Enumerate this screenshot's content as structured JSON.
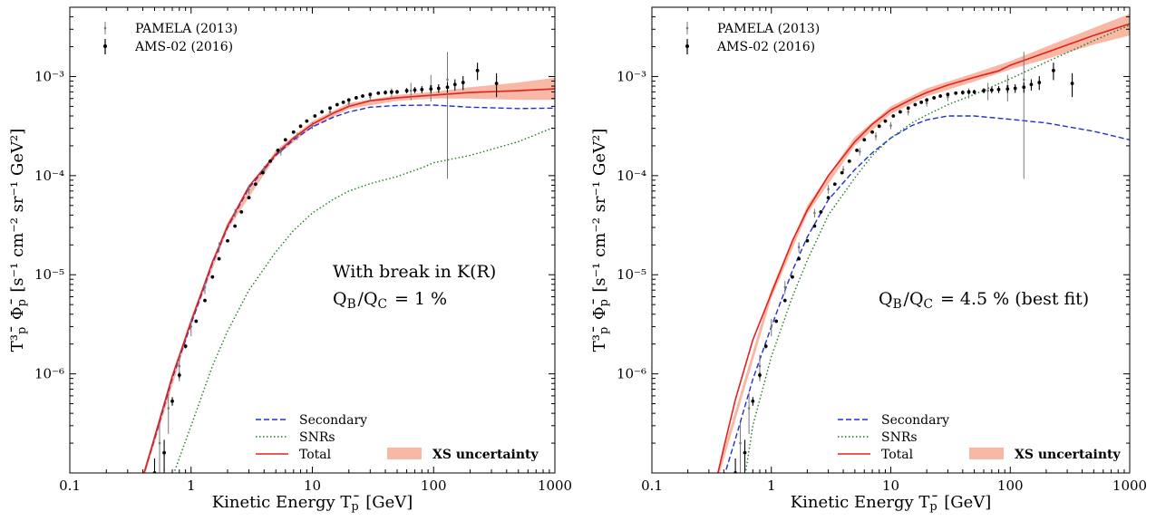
{
  "chart_data": [
    {
      "type": "line",
      "annotation_line1": "With break in K(R)",
      "annotation_line2": "Q_B/Q_C = 1 %",
      "xlabel": "Kinetic Energy T_p̄ [GeV]",
      "ylabel": "T³_p̄ Φ_p̄ [s⁻¹ cm⁻² sr⁻¹ GeV²]",
      "xscale": "log",
      "yscale": "log",
      "xlim": [
        0.1,
        1000
      ],
      "ylim": [
        1e-07,
        0.005
      ],
      "x_ticks": [
        "0.1",
        "1",
        "10",
        "100",
        "1000"
      ],
      "y_ticks": [
        "10⁻⁶",
        "10⁻⁵",
        "10⁻⁴",
        "10⁻³"
      ],
      "legend_top": [
        "PAMELA (2013)",
        "AMS-02 (2016)"
      ],
      "legend_bottom": [
        "Secondary",
        "SNRs",
        "Total",
        "XS uncertainty"
      ],
      "colors": {
        "secondary": "#1f2fd6",
        "snrs": "#1a7d1a",
        "total": "#e32020",
        "band": "#f7b8a5",
        "pamela": "#777777",
        "ams": "#000000"
      },
      "series": [
        {
          "name": "Secondary",
          "style": "dashed",
          "x": [
            0.4,
            0.5,
            0.7,
            1,
            1.5,
            2,
            3,
            5,
            7,
            10,
            15,
            20,
            30,
            50,
            100,
            200,
            500,
            1000
          ],
          "y": [
            9e-08,
            2.2e-07,
            9e-07,
            3.2e-06,
            1.3e-05,
            3e-05,
            7.5e-05,
            0.00016,
            0.00023,
            0.00031,
            0.00039,
            0.00044,
            0.00049,
            0.00051,
            0.000515,
            0.00049,
            0.000475,
            0.00048
          ]
        },
        {
          "name": "SNRs",
          "style": "dotted",
          "x": [
            0.7,
            1,
            1.5,
            2,
            3,
            5,
            7,
            10,
            15,
            20,
            30,
            50,
            80,
            100,
            200,
            500,
            1000
          ],
          "y": [
            9e-08,
            3e-07,
            1.2e-06,
            2.7e-06,
            7e-06,
            1.7e-05,
            2.8e-05,
            4.2e-05,
            5.8e-05,
            7e-05,
            8.3e-05,
            9.8e-05,
            0.00012,
            0.000135,
            0.00016,
            0.00022,
            0.00031
          ]
        },
        {
          "name": "Total",
          "style": "solid",
          "x": [
            0.4,
            0.5,
            0.7,
            1,
            1.5,
            2,
            3,
            5,
            7,
            10,
            15,
            20,
            30,
            50,
            100,
            200,
            500,
            1000
          ],
          "y": [
            9e-08,
            2.3e-07,
            9.5e-07,
            3.4e-06,
            1.35e-05,
            3.1e-05,
            7.8e-05,
            0.000165,
            0.00024,
            0.00033,
            0.00043,
            0.0005,
            0.00057,
            0.00061,
            0.00065,
            0.00069,
            0.00072,
            0.00075
          ]
        }
      ],
      "band": {
        "name": "XS uncertainty",
        "x": [
          0.4,
          1,
          2,
          5,
          10,
          20,
          50,
          100,
          200,
          500,
          1000
        ],
        "low": [
          8.2e-08,
          3.1e-06,
          2.85e-05,
          0.000155,
          0.00031,
          0.00047,
          0.00057,
          0.0006,
          0.0006,
          0.00058,
          0.00058
        ],
        "high": [
          9.9e-08,
          3.7e-06,
          3.4e-05,
          0.00018,
          0.000355,
          0.00054,
          0.00065,
          0.0007,
          0.00078,
          0.00087,
          0.00097
        ]
      },
      "ams": {
        "x": [
          0.5,
          0.6,
          0.7,
          0.8,
          0.9,
          1.1,
          1.3,
          1.5,
          1.7,
          2.0,
          2.3,
          2.6,
          3.0,
          3.4,
          3.9,
          4.5,
          5.2,
          6.0,
          7.0,
          8.0,
          9.0,
          10.5,
          12,
          14,
          16,
          18,
          20,
          23,
          26,
          30,
          35,
          40,
          45,
          50,
          60,
          70,
          80,
          95,
          110,
          130,
          150,
          175,
          230,
          330
        ],
        "y": [
          1e-07,
          1.6e-07,
          5.3e-07,
          9.7e-07,
          1.9e-06,
          3.4e-06,
          5.5e-06,
          9.5e-06,
          1.45e-05,
          2.2e-05,
          3.1e-05,
          4.3e-05,
          6e-05,
          8.2e-05,
          0.000107,
          0.00014,
          0.00018,
          0.00023,
          0.000275,
          0.000315,
          0.000355,
          0.0004,
          0.00044,
          0.00048,
          0.00052,
          0.00055,
          0.00058,
          0.00061,
          0.000635,
          0.00066,
          0.00068,
          0.00069,
          0.0007,
          0.0007,
          0.00072,
          0.00073,
          0.00074,
          0.00075,
          0.00076,
          0.00078,
          0.00083,
          0.00087,
          0.00115,
          0.00085
        ],
        "err": [
          0.4,
          0.35,
          0.1,
          0.07,
          0.05,
          0.04,
          0.04,
          0.04,
          0.03,
          0.03,
          0.03,
          0.03,
          0.03,
          0.03,
          0.03,
          0.03,
          0.03,
          0.03,
          0.03,
          0.03,
          0.03,
          0.03,
          0.03,
          0.03,
          0.03,
          0.04,
          0.04,
          0.04,
          0.04,
          0.04,
          0.04,
          0.05,
          0.05,
          0.05,
          0.06,
          0.07,
          0.08,
          0.09,
          0.1,
          0.12,
          0.13,
          0.16,
          0.2,
          0.27
        ]
      },
      "pamela": {
        "x": [
          0.55,
          0.65,
          0.8,
          1.0,
          1.3,
          1.7,
          2.3,
          3.0,
          4.0,
          5.5,
          7.5,
          10,
          14,
          20,
          30,
          45,
          65,
          95,
          130
        ],
        "y": [
          2e-07,
          4.5e-07,
          1.2e-06,
          3e-06,
          7.5e-06,
          1.9e-05,
          4.2e-05,
          7.3e-05,
          0.000115,
          0.000175,
          0.00025,
          0.00032,
          0.00044,
          0.00054,
          0.00062,
          0.00068,
          0.00072,
          0.0008,
          0.00093
        ],
        "err": [
          0.6,
          0.45,
          0.3,
          0.2,
          0.15,
          0.12,
          0.1,
          0.1,
          0.09,
          0.09,
          0.09,
          0.08,
          0.08,
          0.08,
          0.09,
          0.12,
          0.2,
          0.3,
          0.9
        ]
      }
    },
    {
      "type": "line",
      "annotation_line1": "",
      "annotation_line2": "Q_B/Q_C = 4.5 % (best fit)",
      "xlabel": "Kinetic Energy T_p̄ [GeV]",
      "ylabel": "T³_p̄ Φ_p̄ [s⁻¹ cm⁻² sr⁻¹ GeV²]",
      "xscale": "log",
      "yscale": "log",
      "xlim": [
        0.1,
        1000
      ],
      "ylim": [
        1e-07,
        0.005
      ],
      "x_ticks": [
        "0.1",
        "1",
        "10",
        "100",
        "1000"
      ],
      "y_ticks": [
        "10⁻⁶",
        "10⁻⁵",
        "10⁻⁴",
        "10⁻³"
      ],
      "legend_top": [
        "PAMELA (2013)",
        "AMS-02 (2016)"
      ],
      "legend_bottom": [
        "Secondary",
        "SNRs",
        "Total",
        "XS uncertainty"
      ],
      "colors": {
        "secondary": "#1f2fd6",
        "snrs": "#1a7d1a",
        "total": "#e32020",
        "band": "#f7b8a5",
        "pamela": "#777777",
        "ams": "#000000"
      },
      "series": [
        {
          "name": "Secondary",
          "style": "dashed",
          "x": [
            0.4,
            0.5,
            0.7,
            1,
            1.5,
            2,
            3,
            5,
            7,
            10,
            15,
            20,
            30,
            50,
            100,
            200,
            500,
            1000
          ],
          "y": [
            9e-08,
            2.2e-07,
            8.8e-07,
            3e-06,
            1.1e-05,
            2.4e-05,
            5.7e-05,
            0.000115,
            0.00017,
            0.00024,
            0.00032,
            0.000365,
            0.0004,
            0.0004,
            0.00037,
            0.00034,
            0.00028,
            0.00023
          ]
        },
        {
          "name": "SNRs",
          "style": "dotted",
          "x": [
            0.6,
            0.7,
            1,
            1.5,
            2,
            3,
            5,
            7,
            10,
            15,
            20,
            30,
            50,
            100,
            200,
            500,
            1000
          ],
          "y": [
            9e-08,
            3e-07,
            1.5e-06,
            6e-06,
            1.4e-05,
            4e-05,
            9.5e-05,
            0.00016,
            0.00024,
            0.00034,
            0.00041,
            0.00052,
            0.00066,
            0.00095,
            0.0014,
            0.0023,
            0.0033
          ]
        },
        {
          "name": "Total",
          "style": "solid",
          "x": [
            0.35,
            0.4,
            0.5,
            0.7,
            1,
            1.5,
            2,
            3,
            5,
            7,
            10,
            15,
            20,
            30,
            50,
            80,
            100,
            200,
            500,
            1000
          ],
          "y": [
            9e-08,
            1.8e-07,
            5.5e-07,
            2.2e-06,
            6.5e-06,
            2.2e-05,
            4.5e-05,
            0.0001,
            0.00022,
            0.00033,
            0.00046,
            0.00059,
            0.00069,
            0.00082,
            0.00098,
            0.00114,
            0.0013,
            0.00175,
            0.0026,
            0.0034
          ]
        }
      ],
      "band": {
        "name": "XS uncertainty",
        "x": [
          0.35,
          1,
          2,
          5,
          10,
          20,
          50,
          100,
          200,
          500,
          1000
        ],
        "low": [
          8e-08,
          5.8e-06,
          4.1e-05,
          0.0002,
          0.00042,
          0.00063,
          0.00089,
          0.00118,
          0.0015,
          0.0021,
          0.0026
        ],
        "high": [
          1e-07,
          7.2e-06,
          5e-05,
          0.000245,
          0.0005,
          0.00076,
          0.00108,
          0.00143,
          0.002,
          0.0031,
          0.0043
        ]
      },
      "ams": {
        "x": [
          0.5,
          0.6,
          0.7,
          0.8,
          0.9,
          1.1,
          1.3,
          1.5,
          1.7,
          2.0,
          2.3,
          2.6,
          3.0,
          3.4,
          3.9,
          4.5,
          5.2,
          6.0,
          7.0,
          8.0,
          9.0,
          10.5,
          12,
          14,
          16,
          18,
          20,
          23,
          26,
          30,
          35,
          40,
          45,
          50,
          60,
          70,
          80,
          95,
          110,
          130,
          150,
          175,
          230,
          330
        ],
        "y": [
          1e-07,
          1.6e-07,
          5.3e-07,
          9.7e-07,
          1.9e-06,
          3.4e-06,
          5.5e-06,
          9.5e-06,
          1.45e-05,
          2.2e-05,
          3.1e-05,
          4.3e-05,
          6e-05,
          8.2e-05,
          0.000107,
          0.00014,
          0.00018,
          0.00023,
          0.000275,
          0.000315,
          0.000355,
          0.0004,
          0.00044,
          0.00048,
          0.00052,
          0.00055,
          0.00058,
          0.00061,
          0.000635,
          0.00066,
          0.00068,
          0.00069,
          0.0007,
          0.0007,
          0.00072,
          0.00073,
          0.00074,
          0.00075,
          0.00076,
          0.00078,
          0.00083,
          0.00087,
          0.00115,
          0.00085
        ],
        "err": [
          0.4,
          0.35,
          0.1,
          0.07,
          0.05,
          0.04,
          0.04,
          0.04,
          0.03,
          0.03,
          0.03,
          0.03,
          0.03,
          0.03,
          0.03,
          0.03,
          0.03,
          0.03,
          0.03,
          0.03,
          0.03,
          0.03,
          0.03,
          0.03,
          0.03,
          0.04,
          0.04,
          0.04,
          0.04,
          0.04,
          0.04,
          0.05,
          0.05,
          0.05,
          0.06,
          0.07,
          0.08,
          0.09,
          0.1,
          0.12,
          0.13,
          0.16,
          0.2,
          0.27
        ]
      },
      "pamela": {
        "x": [
          0.55,
          0.65,
          0.8,
          1.0,
          1.3,
          1.7,
          2.3,
          3.0,
          4.0,
          5.5,
          7.5,
          10,
          14,
          20,
          30,
          45,
          65,
          95,
          130
        ],
        "y": [
          2e-07,
          4.5e-07,
          1.2e-06,
          3e-06,
          7.5e-06,
          1.9e-05,
          4.2e-05,
          7.3e-05,
          0.000115,
          0.000175,
          0.00025,
          0.00032,
          0.00044,
          0.00054,
          0.00062,
          0.00068,
          0.00072,
          0.0008,
          0.00093
        ],
        "err": [
          0.6,
          0.45,
          0.3,
          0.2,
          0.15,
          0.12,
          0.1,
          0.1,
          0.09,
          0.09,
          0.09,
          0.08,
          0.08,
          0.08,
          0.09,
          0.12,
          0.2,
          0.3,
          0.9
        ]
      }
    }
  ]
}
